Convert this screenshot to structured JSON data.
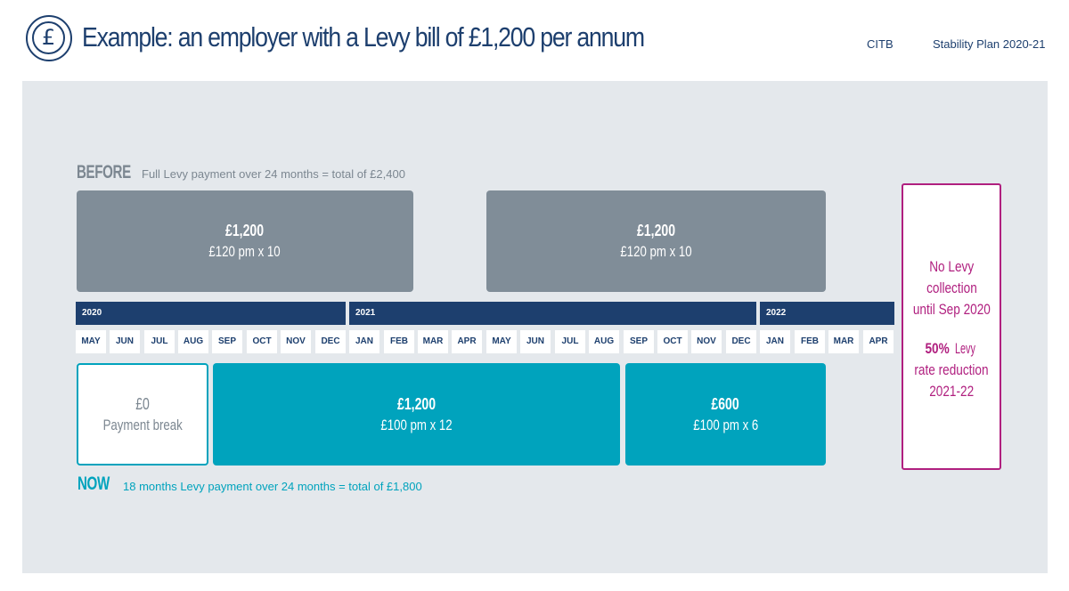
{
  "header": {
    "icon": "pound-sign-icon",
    "icon_glyph": "£",
    "title": "Example: an employer with a Levy bill of £1,200 per annum",
    "org": "CITB",
    "doc_title": "Stability Plan 2020-21"
  },
  "colors": {
    "navy": "#1d3f6e",
    "grey_block": "#808d98",
    "teal": "#00a3bd",
    "magenta": "#b01f7f",
    "panel_bg": "#e4e8ec"
  },
  "before": {
    "label": "BEFORE",
    "description": "Full Levy payment over 24 months = total of £2,400",
    "blocks": [
      {
        "amount": "£1,200",
        "detail": "£120 pm x 10"
      },
      {
        "amount": "£1,200",
        "detail": "£120 pm x 10"
      }
    ]
  },
  "timeline": {
    "years": [
      "2020",
      "2021",
      "2022"
    ],
    "months": [
      "MAY",
      "JUN",
      "JUL",
      "AUG",
      "SEP",
      "OCT",
      "NOV",
      "DEC",
      "JAN",
      "FEB",
      "MAR",
      "APR",
      "MAY",
      "JUN",
      "JUL",
      "AUG",
      "SEP",
      "OCT",
      "NOV",
      "DEC",
      "JAN",
      "FEB",
      "MAR",
      "APR"
    ]
  },
  "now": {
    "label": "NOW",
    "description": "18 months Levy payment over 24 months = total of £1,800",
    "blocks": [
      {
        "amount": "£0",
        "detail": "Payment break"
      },
      {
        "amount": "£1,200",
        "detail": "£100 pm x 12"
      },
      {
        "amount": "£600",
        "detail": "£100 pm x 6"
      }
    ]
  },
  "note": {
    "line1": "No Levy",
    "line2": "collection",
    "line3": "until Sep 2020",
    "line4_bold": "50%",
    "line4_rest": " Levy",
    "line5": "rate reduction",
    "line6": "2021-22"
  }
}
